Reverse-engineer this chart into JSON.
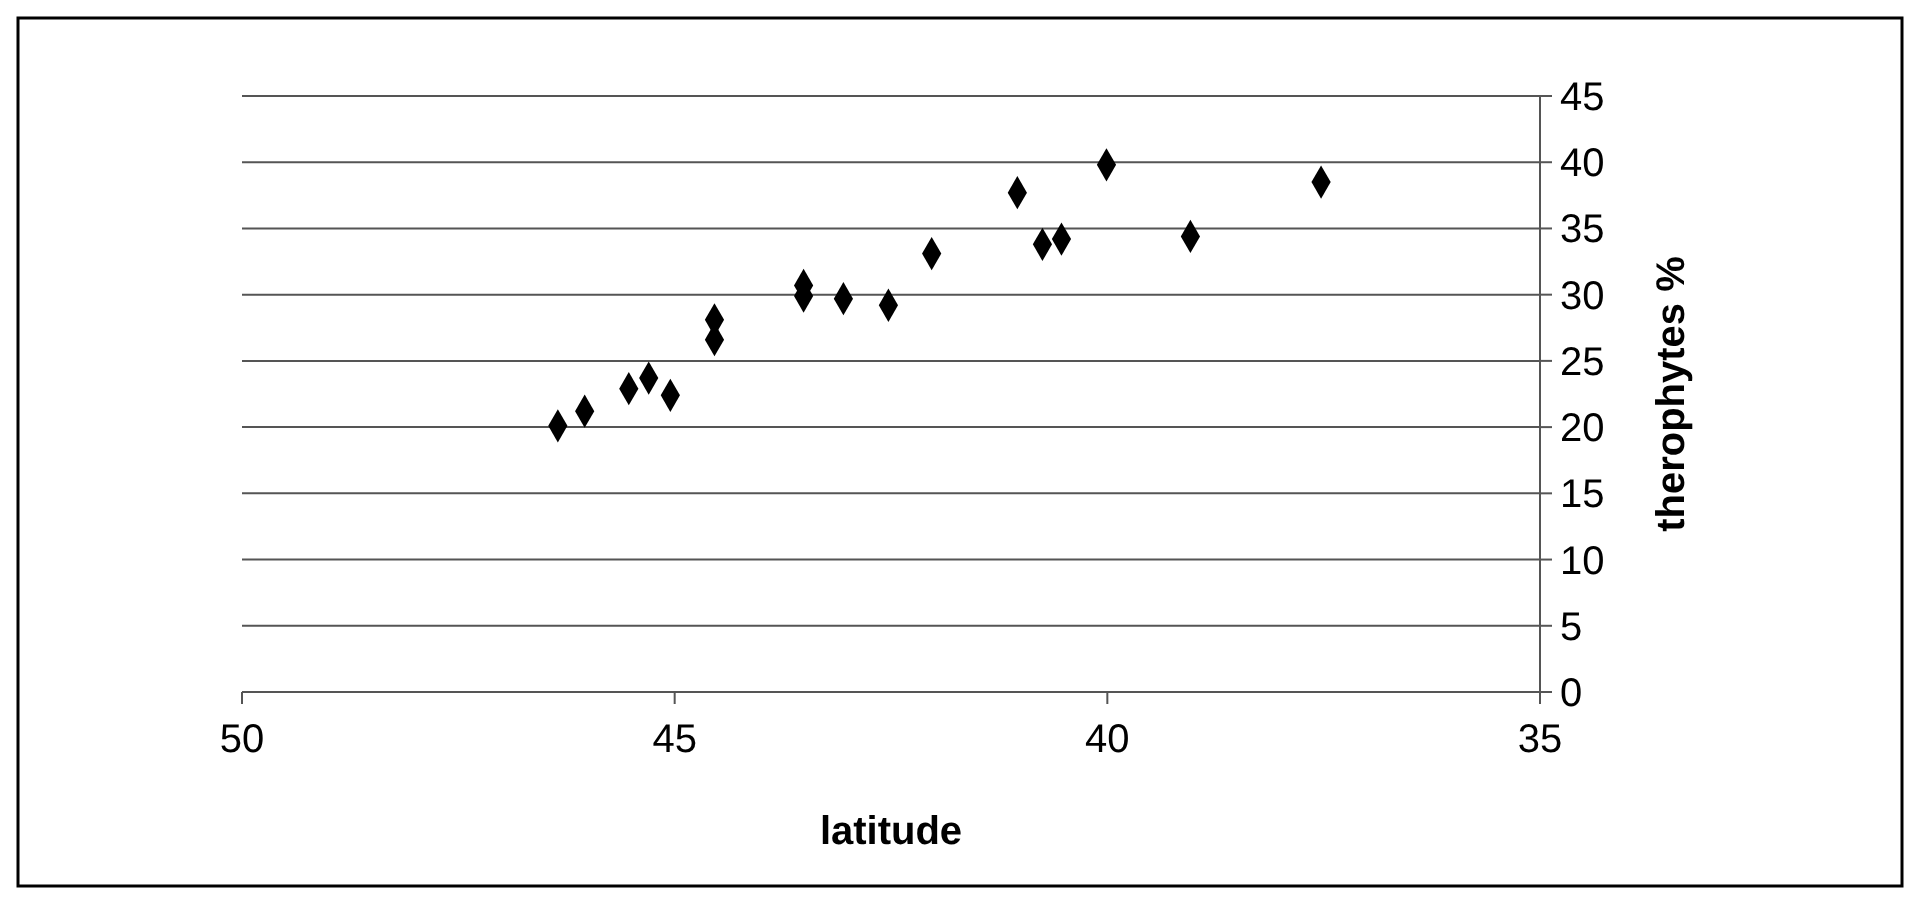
{
  "chart_data": {
    "type": "scatter",
    "xlabel": "latitude",
    "ylabel": "therophytes %",
    "x": [
      46.35,
      46.04,
      45.53,
      45.3,
      45.05,
      44.54,
      44.54,
      43.51,
      43.51,
      43.05,
      42.53,
      42.03,
      41.04,
      40.75,
      40.53,
      40.01,
      39.04,
      37.53
    ],
    "values": [
      20.1,
      21.2,
      22.9,
      23.7,
      22.4,
      28.1,
      26.6,
      30.7,
      29.9,
      29.7,
      29.2,
      33.1,
      37.7,
      33.8,
      34.2,
      39.8,
      34.4,
      38.5
    ],
    "color": "#000000",
    "marker": "diamond",
    "grid": "y",
    "xlim": [
      50,
      35
    ],
    "xticks": [
      50,
      45,
      40,
      35
    ],
    "ylim": [
      0,
      45
    ],
    "yticks": [
      0,
      5,
      10,
      15,
      20,
      25,
      30,
      35,
      40,
      45
    ]
  }
}
